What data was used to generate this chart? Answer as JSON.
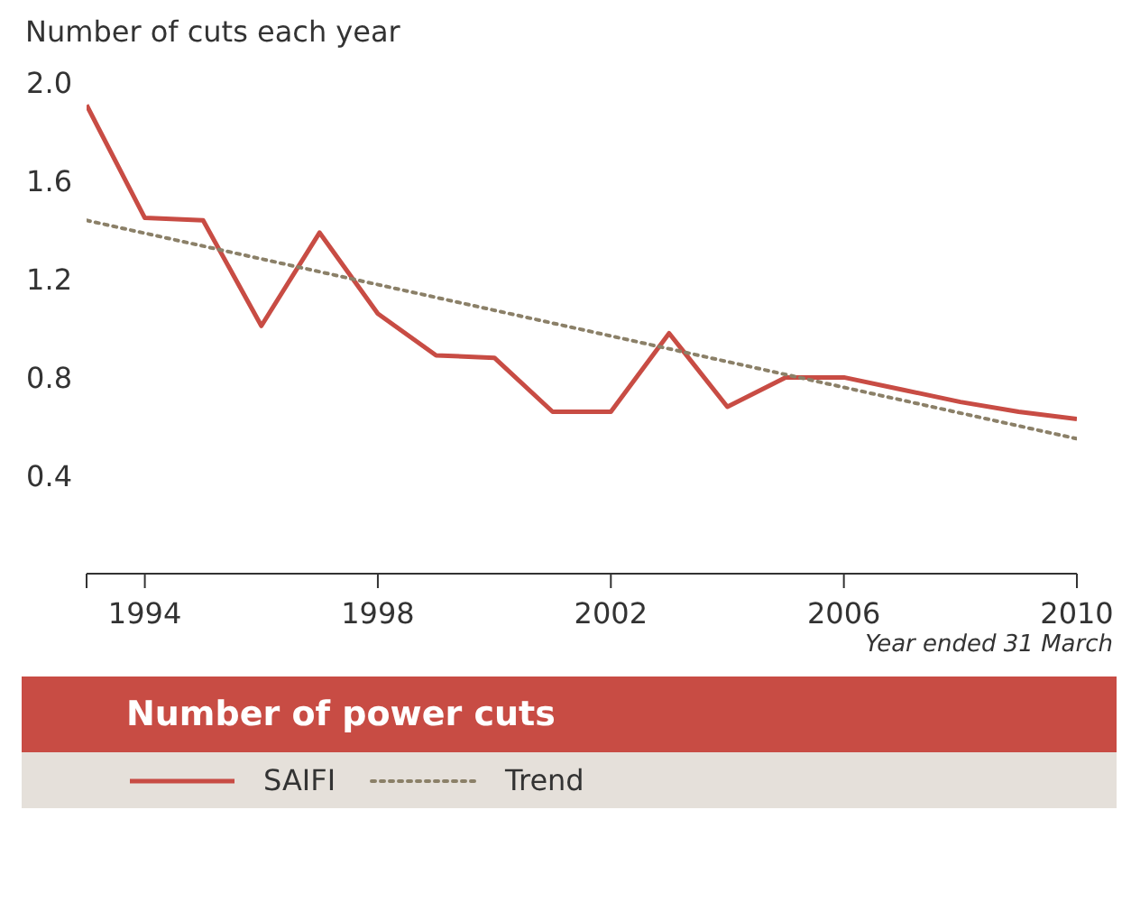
{
  "chart_data": {
    "type": "line",
    "title": "Number of power cuts",
    "ylabel": "Number of cuts each year",
    "xlabel": "Year ended 31 March",
    "xlim": [
      1993,
      2010
    ],
    "xticks": [
      {
        "value": 1993,
        "label": null
      },
      1994,
      1998,
      2002,
      2006,
      2010
    ],
    "ylim": [
      0,
      2.0
    ],
    "yticks": [
      {
        "value": 0.4,
        "label": "0.4"
      },
      {
        "value": 0.8,
        "label": "0.8"
      },
      {
        "value": 1.2,
        "label": "1.2"
      },
      {
        "value": 1.6,
        "label": "1.6"
      },
      {
        "value": 2.0,
        "label": "2.0"
      }
    ],
    "grid": false,
    "legend": "bottom",
    "marker": "none",
    "series": [
      {
        "name": "SAIFI",
        "type": "line",
        "color": "#c84c44",
        "line_style": "solid",
        "x": [
          1993,
          1994,
          1995,
          1996,
          1997,
          1998,
          1999,
          2000,
          2001,
          2002,
          2003,
          2004,
          2005,
          2006,
          2007,
          2008,
          2009,
          2010
        ],
        "values": [
          1.91,
          1.45,
          1.44,
          1.01,
          1.39,
          1.06,
          0.89,
          0.88,
          0.66,
          0.66,
          0.98,
          0.68,
          0.8,
          0.8,
          0.75,
          0.7,
          0.66,
          0.63
        ]
      },
      {
        "name": "Trend",
        "type": "line",
        "color": "#8b8068",
        "line_style": "dotted",
        "x": [
          1993,
          2010
        ],
        "values": [
          1.44,
          0.55
        ]
      }
    ]
  }
}
